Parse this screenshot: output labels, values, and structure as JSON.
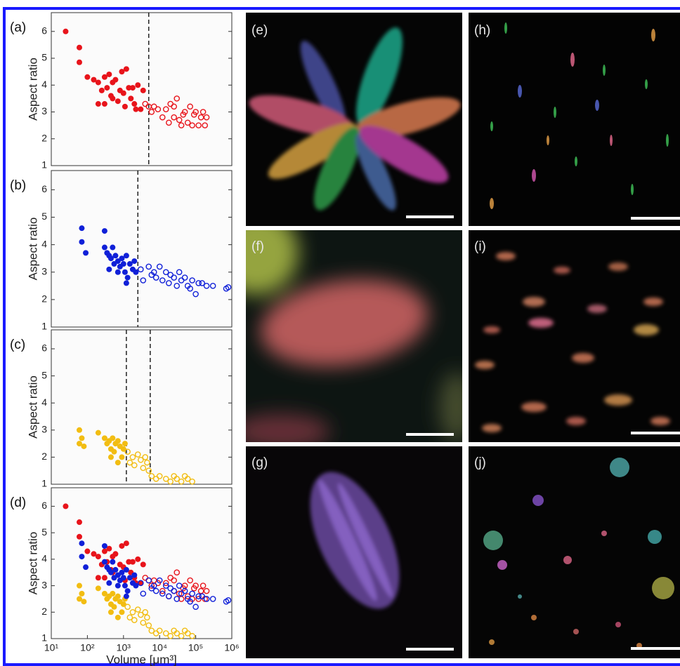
{
  "chart_data": [
    {
      "type": "scatter",
      "panel_label": "(a)",
      "ylabel": "Aspect ratio",
      "log_x": true,
      "xlim": [
        10,
        1000000
      ],
      "ylim": [
        1,
        6.7
      ],
      "yticks": [
        1,
        2,
        3,
        4,
        5,
        6
      ],
      "vlines": [
        5000
      ],
      "series": [
        {
          "color": "#e8141b",
          "marker": "filled",
          "x": [
            25,
            60,
            60,
            100,
            150,
            200,
            250,
            300,
            350,
            400,
            450,
            500,
            600,
            700,
            800,
            900,
            1000,
            1200,
            1400,
            1600,
            2000,
            2500,
            3000,
            3500,
            300,
            500,
            200,
            1100,
            2200,
            1800
          ],
          "values": [
            6,
            5.4,
            4.85,
            4.3,
            4.2,
            4.1,
            3.8,
            4.3,
            3.9,
            4.4,
            3.6,
            4.1,
            4.2,
            3.4,
            3.8,
            4.5,
            3.7,
            4.6,
            3.9,
            3.5,
            3.3,
            4,
            3.1,
            3.8,
            3.3,
            3.5,
            3.3,
            3.2,
            3.1,
            3.9
          ]
        },
        {
          "color": "#e8141b",
          "marker": "open",
          "x": [
            4000,
            5000,
            6000,
            7000,
            9000,
            12000,
            15000,
            18000,
            20000,
            25000,
            30000,
            35000,
            40000,
            50000,
            60000,
            70000,
            80000,
            90000,
            100000,
            120000,
            140000,
            160000,
            180000,
            200000,
            45000,
            25000
          ],
          "values": [
            3.3,
            3.2,
            3,
            3.2,
            3.1,
            2.8,
            3.1,
            2.6,
            3.3,
            2.8,
            3.5,
            2.7,
            2.5,
            3,
            2.6,
            3.2,
            2.5,
            2.9,
            3,
            2.5,
            2.8,
            3,
            2.5,
            2.8,
            2.9,
            3.2
          ]
        }
      ]
    },
    {
      "type": "scatter",
      "panel_label": "(b)",
      "ylabel": "Aspect ratio",
      "log_x": true,
      "xlim": [
        10,
        1000000
      ],
      "ylim": [
        1,
        6.7
      ],
      "yticks": [
        1,
        2,
        3,
        4,
        5,
        6
      ],
      "vlines": [
        2500
      ],
      "series": [
        {
          "color": "#1020d8",
          "marker": "filled",
          "x": [
            70,
            70,
            90,
            300,
            300,
            350,
            400,
            450,
            500,
            550,
            600,
            700,
            800,
            900,
            1000,
            1100,
            1200,
            1300,
            1500,
            1800,
            2000,
            2200,
            400,
            700,
            1200
          ],
          "values": [
            4.6,
            4.1,
            3.7,
            4.5,
            3.9,
            3.7,
            3.6,
            3.5,
            3.9,
            3.3,
            3.6,
            3.4,
            3.2,
            3.5,
            3.3,
            3,
            3.6,
            2.8,
            3.3,
            3.1,
            3.4,
            3,
            3.1,
            3,
            2.6
          ]
        },
        {
          "color": "#1020d8",
          "marker": "open",
          "x": [
            3000,
            3500,
            5000,
            6000,
            7000,
            8000,
            10000,
            12000,
            15000,
            18000,
            20000,
            25000,
            30000,
            35000,
            40000,
            50000,
            60000,
            70000,
            80000,
            100000,
            120000,
            150000,
            200000,
            300000,
            700000,
            800000
          ],
          "values": [
            3.1,
            2.7,
            3.2,
            2.9,
            3,
            2.8,
            3.2,
            2.7,
            3,
            2.6,
            2.9,
            2.8,
            2.5,
            3,
            2.7,
            2.8,
            2.5,
            2.4,
            2.7,
            2.2,
            2.6,
            2.6,
            2.5,
            2.5,
            2.4,
            2.45
          ]
        }
      ]
    },
    {
      "type": "scatter",
      "panel_label": "(c)",
      "ylabel": "Aspect ratio",
      "log_x": true,
      "xlim": [
        10,
        1000000
      ],
      "ylim": [
        1,
        6.7
      ],
      "yticks": [
        1,
        2,
        3,
        4,
        5,
        6
      ],
      "vlines": [
        1200,
        5500
      ],
      "series": [
        {
          "color": "#f2bd12",
          "marker": "filled",
          "x": [
            60,
            60,
            80,
            70,
            200,
            300,
            350,
            400,
            450,
            500,
            550,
            600,
            700,
            800,
            900,
            1000,
            450,
            700,
            1100
          ],
          "values": [
            3,
            2.5,
            2.4,
            2.7,
            2.9,
            2.7,
            2.5,
            2.6,
            2.3,
            2.7,
            2.2,
            2.5,
            2.6,
            2.4,
            2,
            2.3,
            2,
            1.8,
            2.5
          ]
        },
        {
          "color": "#f2bd12",
          "marker": "open",
          "x": [
            1300,
            1500,
            1800,
            2000,
            2500,
            3000,
            3500,
            4000,
            4500,
            5000,
            6000,
            8000,
            10000,
            15000,
            20000,
            25000,
            30000,
            40000,
            50000,
            60000,
            80000
          ],
          "values": [
            2.2,
            1.8,
            2,
            1.7,
            2.1,
            1.9,
            1.6,
            2,
            1.8,
            1.5,
            1.3,
            1.2,
            1.3,
            1.2,
            1.1,
            1.3,
            1.2,
            1.1,
            1.3,
            1.2,
            1.1
          ]
        }
      ]
    },
    {
      "type": "scatter",
      "panel_label": "(d)",
      "ylabel": "Aspect ratio",
      "xlabel": "Volume [μm³]",
      "log_x": true,
      "xlim": [
        10,
        1000000
      ],
      "ylim": [
        1,
        6.7
      ],
      "yticks": [
        1,
        2,
        3,
        4,
        5,
        6
      ],
      "xticks": [
        {
          "value": 10,
          "label": "10¹"
        },
        {
          "value": 100,
          "label": "10²"
        },
        {
          "value": 1000,
          "label": "10³"
        },
        {
          "value": 10000,
          "label": "10⁴"
        },
        {
          "value": 100000,
          "label": "10⁵"
        },
        {
          "value": 1000000,
          "label": "10⁶"
        }
      ],
      "series": [
        {
          "color": "#f2bd12",
          "marker": "filled",
          "x": [
            60,
            60,
            80,
            70,
            200,
            300,
            350,
            400,
            450,
            500,
            550,
            600,
            700,
            800,
            900,
            1000,
            450,
            700,
            1100
          ],
          "values": [
            3,
            2.5,
            2.4,
            2.7,
            2.9,
            2.7,
            2.5,
            2.6,
            2.3,
            2.7,
            2.2,
            2.5,
            2.6,
            2.4,
            2,
            2.3,
            2,
            1.8,
            2.5
          ]
        },
        {
          "color": "#f2bd12",
          "marker": "open",
          "x": [
            1300,
            1500,
            1800,
            2000,
            2500,
            3000,
            3500,
            4000,
            4500,
            5000,
            6000,
            8000,
            10000,
            15000,
            20000,
            25000,
            30000,
            40000,
            50000,
            60000,
            80000
          ],
          "values": [
            2.2,
            1.8,
            2,
            1.7,
            2.1,
            1.9,
            1.6,
            2,
            1.8,
            1.5,
            1.3,
            1.2,
            1.3,
            1.2,
            1.1,
            1.3,
            1.2,
            1.1,
            1.3,
            1.2,
            1.1
          ]
        },
        {
          "color": "#e8141b",
          "marker": "filled",
          "x": [
            25,
            60,
            60,
            100,
            150,
            200,
            250,
            300,
            350,
            400,
            450,
            500,
            600,
            700,
            800,
            900,
            1000,
            1200,
            1400,
            1600,
            2000,
            2500,
            3000,
            3500,
            300,
            500,
            200,
            1100,
            2200,
            1800
          ],
          "values": [
            6,
            5.4,
            4.85,
            4.3,
            4.2,
            4.1,
            3.8,
            4.3,
            3.9,
            4.4,
            3.6,
            4.1,
            4.2,
            3.4,
            3.8,
            4.5,
            3.7,
            4.6,
            3.9,
            3.5,
            3.3,
            4,
            3.1,
            3.8,
            3.3,
            3.5,
            3.3,
            3.2,
            3.1,
            3.9
          ]
        },
        {
          "color": "#e8141b",
          "marker": "open",
          "x": [
            4000,
            5000,
            6000,
            7000,
            9000,
            12000,
            15000,
            18000,
            20000,
            25000,
            30000,
            35000,
            40000,
            50000,
            60000,
            70000,
            80000,
            90000,
            100000,
            120000,
            140000,
            160000,
            180000,
            200000,
            45000,
            25000
          ],
          "values": [
            3.3,
            3.2,
            3,
            3.2,
            3.1,
            2.8,
            3.1,
            2.6,
            3.3,
            2.8,
            3.5,
            2.7,
            2.5,
            3,
            2.6,
            3.2,
            2.5,
            2.9,
            3,
            2.5,
            2.8,
            3,
            2.5,
            2.8,
            2.9,
            3.2
          ]
        },
        {
          "color": "#1020d8",
          "marker": "filled",
          "x": [
            70,
            70,
            90,
            300,
            300,
            350,
            400,
            450,
            500,
            550,
            600,
            700,
            800,
            900,
            1000,
            1100,
            1200,
            1300,
            1500,
            1800,
            2000,
            2200,
            400,
            700,
            1200
          ],
          "values": [
            4.6,
            4.1,
            3.7,
            4.5,
            3.9,
            3.7,
            3.6,
            3.5,
            3.9,
            3.3,
            3.6,
            3.4,
            3.2,
            3.5,
            3.3,
            3,
            3.6,
            2.8,
            3.3,
            3.1,
            3.4,
            3,
            3.1,
            3,
            2.6
          ]
        },
        {
          "color": "#1020d8",
          "marker": "open",
          "x": [
            3000,
            3500,
            5000,
            6000,
            7000,
            8000,
            10000,
            12000,
            15000,
            18000,
            20000,
            25000,
            30000,
            35000,
            40000,
            50000,
            60000,
            70000,
            80000,
            100000,
            120000,
            150000,
            200000,
            300000,
            700000,
            800000
          ],
          "values": [
            3.1,
            2.7,
            3.2,
            2.9,
            3,
            2.8,
            3.2,
            2.7,
            3,
            2.6,
            2.9,
            2.8,
            2.5,
            3,
            2.7,
            2.8,
            2.5,
            2.4,
            2.7,
            2.2,
            2.6,
            2.6,
            2.5,
            2.5,
            2.4,
            2.45
          ]
        }
      ]
    }
  ],
  "image_panels": [
    "(e)",
    "(h)",
    "(f)",
    "(i)",
    "(g)",
    "(j)"
  ]
}
